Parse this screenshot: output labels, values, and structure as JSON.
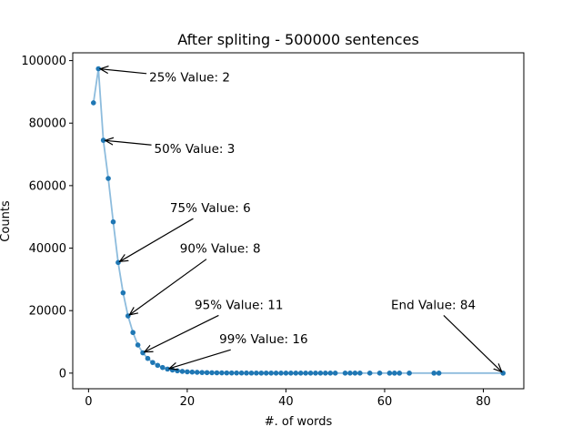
{
  "chart_data": {
    "type": "line",
    "title": "After spliting - 500000 sentences",
    "xlabel": "#. of words",
    "ylabel": "Counts",
    "xlim": [
      -3.2,
      88.2
    ],
    "ylim": [
      -5000,
      102500
    ],
    "xticks": [
      0,
      20,
      40,
      60,
      80
    ],
    "yticks": [
      0,
      20000,
      40000,
      60000,
      80000,
      100000
    ],
    "grid": false,
    "line_color": "#8dbcdd",
    "marker_color": "#1f77b4",
    "series": [
      {
        "x": [
          1,
          2,
          3,
          4,
          5,
          6,
          7,
          8,
          9,
          10,
          11,
          12,
          13,
          14,
          15,
          16,
          17,
          18,
          19,
          20,
          21,
          22,
          23,
          24,
          25,
          26,
          27,
          28,
          29,
          30,
          31,
          32,
          33,
          34,
          35,
          36,
          37,
          38,
          39,
          40,
          41,
          42,
          43,
          44,
          45,
          46,
          47,
          48,
          49,
          50,
          52,
          53,
          54,
          55,
          57,
          59,
          61,
          62,
          63,
          65,
          70,
          71,
          84
        ],
        "y": [
          86500,
          97400,
          74500,
          62300,
          48400,
          35400,
          25700,
          18300,
          13000,
          9000,
          6500,
          4700,
          3400,
          2500,
          1800,
          1300,
          1000,
          750,
          550,
          420,
          330,
          260,
          200,
          160,
          130,
          100,
          80,
          65,
          55,
          45,
          38,
          32,
          28,
          24,
          20,
          18,
          15,
          13,
          11,
          10,
          9,
          8,
          7,
          6,
          5,
          5,
          4,
          4,
          3,
          3,
          3,
          2,
          2,
          2,
          2,
          2,
          1,
          1,
          1,
          1,
          1,
          1,
          1
        ]
      }
    ],
    "annotations": [
      {
        "text": "25% Value: 2",
        "target": [
          2,
          97400
        ],
        "text_at": [
          12.3,
          93300
        ]
      },
      {
        "text": "50% Value: 3",
        "target": [
          3,
          74500
        ],
        "text_at": [
          13.3,
          70500
        ]
      },
      {
        "text": "75% Value: 6",
        "target": [
          6,
          35400
        ],
        "text_at": [
          16.5,
          51500
        ]
      },
      {
        "text": "90% Value: 8",
        "target": [
          8,
          18300
        ],
        "text_at": [
          18.5,
          38500
        ]
      },
      {
        "text": "95% Value: 11",
        "target": [
          11,
          6500
        ],
        "text_at": [
          21.5,
          20500
        ]
      },
      {
        "text": "99% Value: 16",
        "target": [
          16,
          1300
        ],
        "text_at": [
          26.5,
          9500
        ]
      },
      {
        "text": "End Value: 84",
        "target": [
          84,
          1
        ],
        "text_at": [
          61.3,
          20500
        ]
      }
    ]
  }
}
